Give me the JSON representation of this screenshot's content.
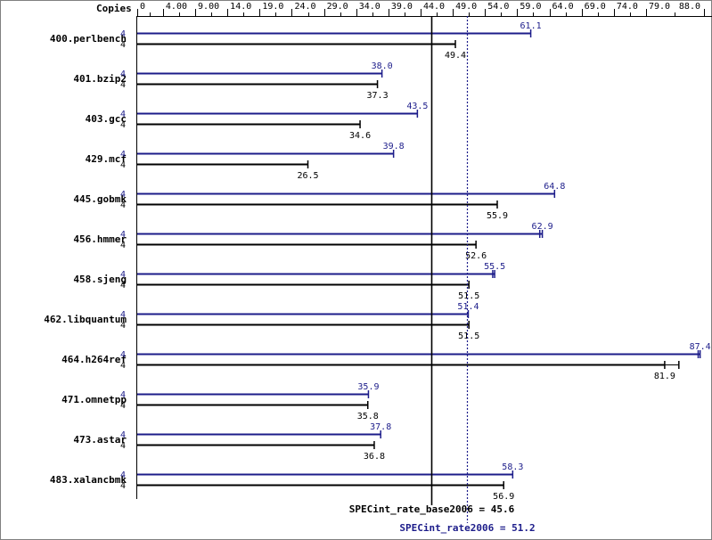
{
  "chart_data": {
    "type": "bar",
    "axis": {
      "label": "Copies",
      "min": 0,
      "max": 88.0,
      "ticks": [
        0,
        4.0,
        9.0,
        14.0,
        19.0,
        24.0,
        29.0,
        34.0,
        39.0,
        44.0,
        49.0,
        54.0,
        59.0,
        64.0,
        69.0,
        74.0,
        79.0,
        88.0
      ],
      "tick_labels": [
        "0",
        "4.00",
        "9.00",
        "14.0",
        "19.0",
        "24.0",
        "29.0",
        "34.0",
        "39.0",
        "44.0",
        "49.0",
        "54.0",
        "59.0",
        "64.0",
        "69.0",
        "74.0",
        "79.0",
        "88.0"
      ]
    },
    "categories": [
      "400.perlbench",
      "401.bzip2",
      "403.gcc",
      "429.mcf",
      "445.gobmk",
      "456.hmmer",
      "458.sjeng",
      "462.libquantum",
      "464.h264ref",
      "471.omnetpp",
      "473.astar",
      "483.xalancbmk"
    ],
    "series": [
      {
        "key": "peak",
        "color": "#1c1c8a",
        "copies": [
          "4",
          "4",
          "4",
          "4",
          "4",
          "4",
          "4",
          "4",
          "4",
          "4",
          "4",
          "4"
        ],
        "values": [
          61.1,
          38.0,
          43.5,
          39.8,
          64.8,
          62.9,
          55.5,
          51.4,
          87.4,
          35.9,
          37.8,
          58.3
        ],
        "labels": [
          "61.1",
          "38.0",
          "43.5",
          "39.8",
          "64.8",
          "62.9",
          "55.5",
          "51.4",
          "87.4",
          "35.9",
          "37.8",
          "58.3"
        ],
        "whisker_min": [
          61.1,
          38.0,
          43.5,
          39.8,
          64.8,
          62.5,
          55.2,
          51.4,
          87.1,
          35.9,
          37.8,
          58.3
        ]
      },
      {
        "key": "base",
        "color": "#000000",
        "copies": [
          "4",
          "4",
          "4",
          "4",
          "4",
          "4",
          "4",
          "4",
          "4",
          "4",
          "4",
          "4"
        ],
        "values": [
          49.4,
          37.3,
          34.6,
          26.5,
          55.9,
          52.6,
          51.5,
          51.5,
          81.9,
          35.8,
          36.8,
          56.9
        ],
        "labels": [
          "49.4",
          "37.3",
          "34.6",
          "26.5",
          "55.9",
          "52.6",
          "51.5",
          "51.5",
          "81.9",
          "35.8",
          "36.8",
          "56.9"
        ],
        "whisker_max": [
          49.4,
          37.3,
          34.6,
          26.5,
          55.9,
          52.6,
          51.5,
          51.5,
          84.1,
          35.8,
          36.8,
          56.9
        ]
      }
    ],
    "reference_lines": [
      {
        "key": "base",
        "label": "SPECint_rate_base2006 = 45.6",
        "value": 45.6,
        "color": "#000000",
        "style": "solid"
      },
      {
        "key": "peak",
        "label": "SPECint_rate2006 = 51.2",
        "value": 51.2,
        "color": "#1c1c8a",
        "style": "dotted"
      }
    ]
  }
}
